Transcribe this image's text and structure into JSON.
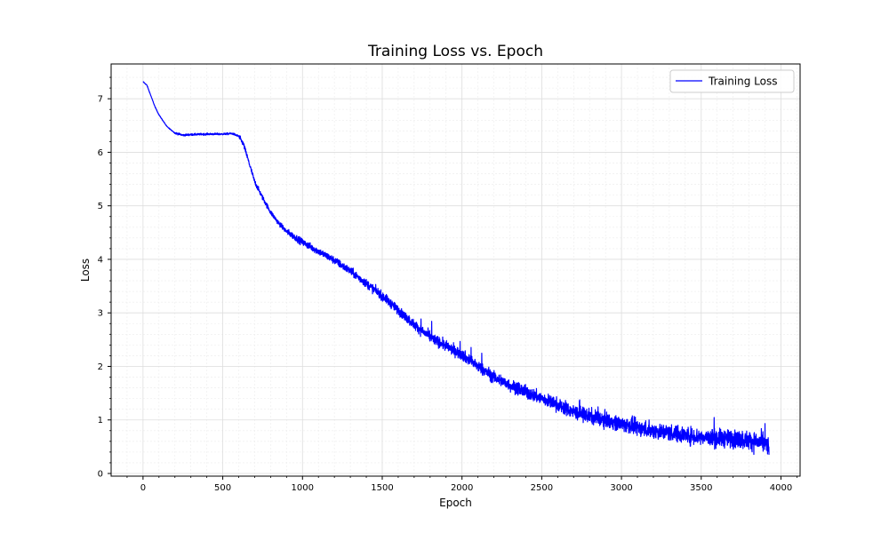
{
  "chart_data": {
    "type": "line",
    "title": "Training Loss vs. Epoch",
    "xlabel": "Epoch",
    "ylabel": "Loss",
    "xlim": [
      -200,
      4120
    ],
    "ylim": [
      -0.05,
      7.65
    ],
    "xticks": [
      0,
      500,
      1000,
      1500,
      2000,
      2500,
      3000,
      3500,
      4000
    ],
    "yticks": [
      0,
      1,
      2,
      3,
      4,
      5,
      6,
      7
    ],
    "grid": true,
    "minor_grid": true,
    "legend": {
      "position": "top-right",
      "entries": [
        "Training Loss"
      ]
    },
    "series": [
      {
        "name": "Training Loss",
        "color": "#0000ff",
        "x": [
          0,
          25,
          50,
          75,
          100,
          150,
          200,
          250,
          300,
          400,
          500,
          560,
          600,
          630,
          650,
          675,
          700,
          750,
          800,
          850,
          900,
          1000,
          1100,
          1200,
          1300,
          1400,
          1500,
          1600,
          1700,
          1800,
          1900,
          2000,
          2100,
          2200,
          2300,
          2400,
          2500,
          2600,
          2700,
          2800,
          2900,
          3000,
          3100,
          3200,
          3300,
          3400,
          3500,
          3600,
          3700,
          3800,
          3900,
          3925
        ],
        "y": [
          7.32,
          7.25,
          7.05,
          6.85,
          6.7,
          6.48,
          6.36,
          6.32,
          6.33,
          6.34,
          6.34,
          6.35,
          6.3,
          6.15,
          5.95,
          5.7,
          5.45,
          5.15,
          4.88,
          4.68,
          4.52,
          4.32,
          4.15,
          3.98,
          3.78,
          3.55,
          3.32,
          3.05,
          2.78,
          2.55,
          2.38,
          2.22,
          2.0,
          1.8,
          1.65,
          1.52,
          1.4,
          1.28,
          1.15,
          1.07,
          1.0,
          0.93,
          0.86,
          0.8,
          0.76,
          0.72,
          0.68,
          0.66,
          0.65,
          0.62,
          0.56,
          0.5
        ]
      }
    ]
  }
}
